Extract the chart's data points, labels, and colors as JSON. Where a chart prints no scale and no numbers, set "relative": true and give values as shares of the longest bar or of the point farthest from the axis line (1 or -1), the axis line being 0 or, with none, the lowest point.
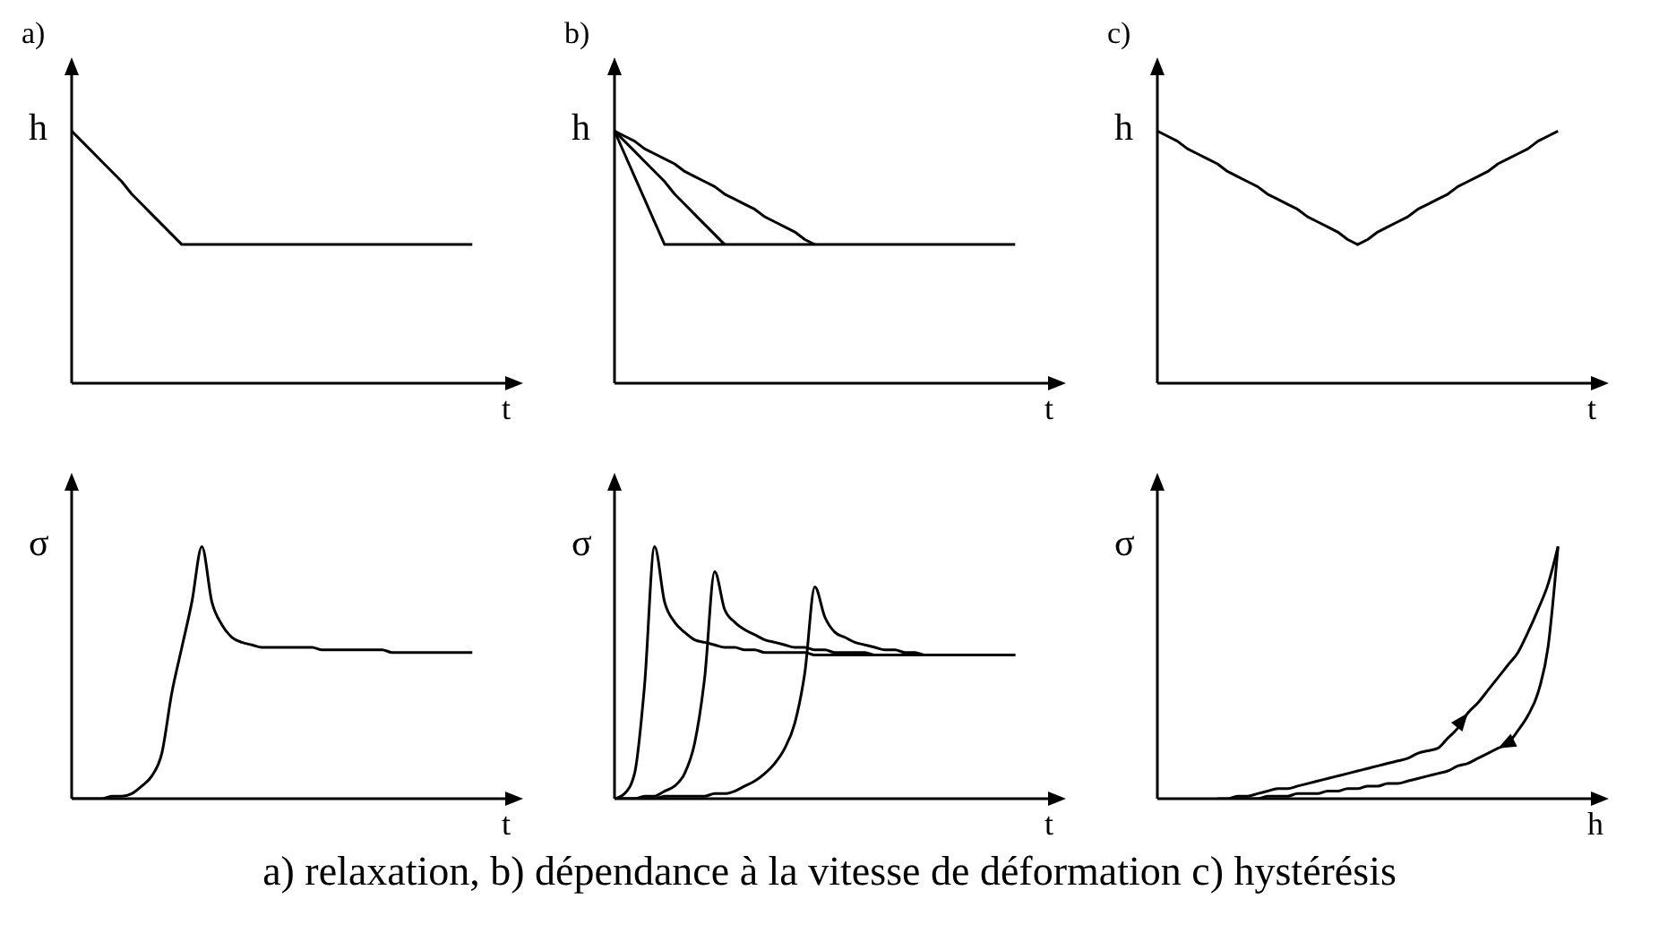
{
  "chart_data": [
    {
      "type": "line",
      "title": "a)",
      "xlabel": "t",
      "ylabel": "h",
      "relative": true,
      "categories": [
        null,
        null,
        null,
        null,
        null,
        null,
        null,
        null,
        null,
        null,
        null,
        null,
        null,
        null,
        null,
        null,
        null,
        null,
        null,
        null,
        null,
        null,
        null,
        null,
        null,
        null,
        null,
        null,
        null,
        null,
        null,
        null,
        null,
        null,
        null,
        null,
        null,
        null,
        null,
        null,
        null
      ],
      "series": [
        {
          "color": "#000000",
          "values": [
            1,
            0.96,
            0.92,
            0.88,
            0.84,
            0.8,
            0.75,
            0.71,
            0.67,
            0.63,
            0.59,
            0.55,
            0.55,
            0.55,
            0.55,
            0.55,
            0.55,
            0.55,
            0.55,
            0.55,
            0.55,
            0.55,
            0.55,
            0.55,
            0.55,
            0.55,
            0.55,
            0.55,
            0.55,
            0.55,
            0.55,
            0.55,
            0.55,
            0.55,
            0.55,
            0.55,
            0.55,
            0.55,
            0.55,
            0.55,
            0.55
          ]
        }
      ]
    },
    {
      "type": "line",
      "title": "b)",
      "xlabel": "t",
      "ylabel": "h",
      "relative": true,
      "categories": [
        null,
        null,
        null,
        null,
        null,
        null,
        null,
        null,
        null,
        null,
        null,
        null,
        null,
        null,
        null,
        null,
        null,
        null,
        null,
        null,
        null,
        null,
        null,
        null,
        null,
        null,
        null,
        null,
        null,
        null,
        null,
        null,
        null,
        null,
        null,
        null,
        null,
        null,
        null,
        null,
        null
      ],
      "series": [
        {
          "color": "#000000",
          "values": [
            1,
            0.91,
            0.82,
            0.73,
            0.64,
            0.55,
            0.55,
            0.55,
            0.55,
            0.55,
            0.55,
            0.55,
            0.55,
            0.55,
            0.55,
            0.55,
            0.55,
            0.55,
            0.55,
            0.55,
            0.55,
            0.55,
            0.55,
            0.55,
            0.55,
            0.55,
            0.55,
            0.55,
            0.55,
            0.55,
            0.55,
            0.55,
            0.55,
            0.55,
            0.55,
            0.55,
            0.55,
            0.55,
            0.55,
            0.55,
            0.55
          ]
        },
        {
          "color": "#000000",
          "values": [
            1,
            0.96,
            0.92,
            0.88,
            0.84,
            0.8,
            0.75,
            0.71,
            0.67,
            0.63,
            0.59,
            0.55,
            null,
            null,
            null,
            null,
            null,
            null,
            null,
            null,
            null,
            null,
            null,
            null,
            null,
            null,
            null,
            null,
            null,
            null,
            null,
            null,
            null,
            null,
            null,
            null,
            null,
            null,
            null,
            null,
            null
          ]
        },
        {
          "color": "#000000",
          "values": [
            1,
            0.98,
            0.96,
            0.93,
            0.91,
            0.89,
            0.87,
            0.84,
            0.82,
            0.8,
            0.78,
            0.75,
            0.73,
            0.71,
            0.69,
            0.66,
            0.64,
            0.62,
            0.6,
            0.57,
            0.55,
            null,
            null,
            null,
            null,
            null,
            null,
            null,
            null,
            null,
            null,
            null,
            null,
            null,
            null,
            null,
            null,
            null,
            null,
            null,
            null
          ]
        }
      ]
    },
    {
      "type": "line",
      "title": "c)",
      "xlabel": "t",
      "ylabel": "h",
      "relative": true,
      "categories": [
        null,
        null,
        null,
        null,
        null,
        null,
        null,
        null,
        null,
        null,
        null,
        null,
        null,
        null,
        null,
        null,
        null,
        null,
        null,
        null,
        null,
        null,
        null,
        null,
        null,
        null,
        null,
        null,
        null,
        null,
        null,
        null,
        null,
        null,
        null,
        null,
        null,
        null,
        null,
        null,
        null
      ],
      "series": [
        {
          "color": "#000000",
          "values": [
            1,
            0.98,
            0.96,
            0.93,
            0.91,
            0.89,
            0.87,
            0.84,
            0.82,
            0.8,
            0.78,
            0.75,
            0.73,
            0.71,
            0.69,
            0.66,
            0.64,
            0.62,
            0.6,
            0.57,
            0.55,
            0.57,
            0.6,
            0.62,
            0.64,
            0.66,
            0.69,
            0.71,
            0.73,
            0.75,
            0.78,
            0.8,
            0.82,
            0.84,
            0.87,
            0.89,
            0.91,
            0.93,
            0.96,
            0.98,
            1
          ]
        }
      ]
    },
    {
      "type": "line",
      "xlabel": "t",
      "ylabel": "σ",
      "relative": true,
      "categories": [
        null,
        null,
        null,
        null,
        null,
        null,
        null,
        null,
        null,
        null,
        null,
        null,
        null,
        null,
        null,
        null,
        null,
        null,
        null,
        null,
        null,
        null,
        null,
        null,
        null,
        null,
        null,
        null,
        null,
        null,
        null,
        null,
        null,
        null,
        null,
        null,
        null,
        null,
        null,
        null,
        null
      ],
      "series": [
        {
          "color": "#000000",
          "values": [
            0,
            0,
            0,
            0,
            0.01,
            0.01,
            0.02,
            0.05,
            0.09,
            0.18,
            0.42,
            0.6,
            0.78,
            1,
            0.78,
            0.69,
            0.64,
            0.62,
            0.61,
            0.6,
            0.6,
            0.6,
            0.6,
            0.6,
            0.6,
            0.59,
            0.59,
            0.59,
            0.59,
            0.59,
            0.59,
            0.59,
            0.58,
            0.58,
            0.58,
            0.58,
            0.58,
            0.58,
            0.58,
            0.58,
            0.58
          ]
        }
      ]
    },
    {
      "type": "line",
      "xlabel": "t",
      "ylabel": "σ",
      "relative": true,
      "annotations": [
        "a) relaxation, b) dépendance à la vitesse de déformation c) hystérésis"
      ],
      "categories": [
        null,
        null,
        null,
        null,
        null,
        null,
        null,
        null,
        null,
        null,
        null,
        null,
        null,
        null,
        null,
        null,
        null,
        null,
        null,
        null,
        null,
        null,
        null,
        null,
        null,
        null,
        null,
        null,
        null,
        null,
        null,
        null,
        null,
        null,
        null,
        null,
        null,
        null,
        null,
        null,
        null
      ],
      "series": [
        {
          "color": "#000000",
          "values": [
            0,
            0.02,
            0.1,
            0.45,
            1,
            0.78,
            0.7,
            0.66,
            0.63,
            0.62,
            0.61,
            0.6,
            0.6,
            0.59,
            0.59,
            0.58,
            0.58,
            0.58,
            0.58,
            0.58,
            0.57,
            0.57,
            0.57,
            0.57,
            0.57,
            0.57,
            0.57,
            0.57,
            0.57,
            0.57,
            0.57,
            0.57,
            0.57,
            0.57,
            0.57,
            0.57,
            0.57,
            0.57,
            0.57,
            0.57,
            0.57
          ]
        },
        {
          "color": "#000000",
          "values": [
            0,
            0,
            0,
            0.01,
            0.01,
            0.03,
            0.05,
            0.1,
            0.22,
            0.48,
            0.9,
            0.75,
            0.7,
            0.67,
            0.65,
            0.63,
            0.62,
            0.61,
            0.6,
            0.6,
            0.59,
            0.59,
            0.58,
            0.58,
            0.58,
            0.58,
            0.57,
            0.57,
            0.57,
            0.57,
            0.57,
            0.57,
            0.57,
            0.57,
            0.57,
            0.57,
            0.57,
            0.57,
            0.57,
            0.57,
            0.57
          ]
        },
        {
          "color": "#000000",
          "values": [
            0,
            0,
            0,
            0,
            0,
            0.01,
            0.01,
            0.01,
            0.01,
            0.01,
            0.02,
            0.02,
            0.03,
            0.05,
            0.07,
            0.1,
            0.14,
            0.2,
            0.3,
            0.5,
            0.84,
            0.72,
            0.66,
            0.64,
            0.62,
            0.61,
            0.6,
            0.59,
            0.59,
            0.58,
            0.58,
            0.57,
            0.57,
            0.57,
            0.57,
            0.57,
            0.57,
            0.57,
            0.57,
            0.57,
            0.57
          ]
        }
      ]
    },
    {
      "type": "line",
      "xlabel": "h",
      "ylabel": "σ",
      "relative": true,
      "categories": [
        null,
        null,
        null,
        null,
        null,
        null,
        null,
        null,
        null,
        null,
        null,
        null,
        null,
        null,
        null,
        null,
        null,
        null,
        null,
        null,
        null,
        null,
        null,
        null,
        null,
        null,
        null,
        null,
        null,
        null,
        null,
        null,
        null,
        null,
        null,
        null,
        null,
        null,
        null,
        null,
        null
      ],
      "series": [
        {
          "color": "#000000",
          "values": [
            null,
            null,
            null,
            null,
            null,
            null,
            0,
            0,
            0.01,
            0.01,
            0.02,
            0.03,
            0.04,
            0.04,
            0.05,
            0.06,
            0.07,
            0.08,
            0.09,
            0.1,
            0.11,
            0.12,
            0.13,
            0.14,
            0.15,
            0.16,
            0.18,
            0.19,
            0.2,
            0.24,
            0.28,
            0.34,
            0.38,
            0.43,
            0.48,
            0.53,
            0.58,
            0.66,
            0.75,
            0.85,
            1
          ]
        },
        {
          "color": "#000000",
          "values": [
            null,
            null,
            null,
            null,
            null,
            null,
            null,
            null,
            0,
            0,
            0,
            0.01,
            0.01,
            0.01,
            0.02,
            0.02,
            0.02,
            0.03,
            0.03,
            0.04,
            0.04,
            0.05,
            0.05,
            0.06,
            0.06,
            0.07,
            0.08,
            0.09,
            0.1,
            0.11,
            0.13,
            0.14,
            0.16,
            0.18,
            0.2,
            0.22,
            0.27,
            0.33,
            0.42,
            0.6,
            1
          ]
        }
      ]
    }
  ]
}
